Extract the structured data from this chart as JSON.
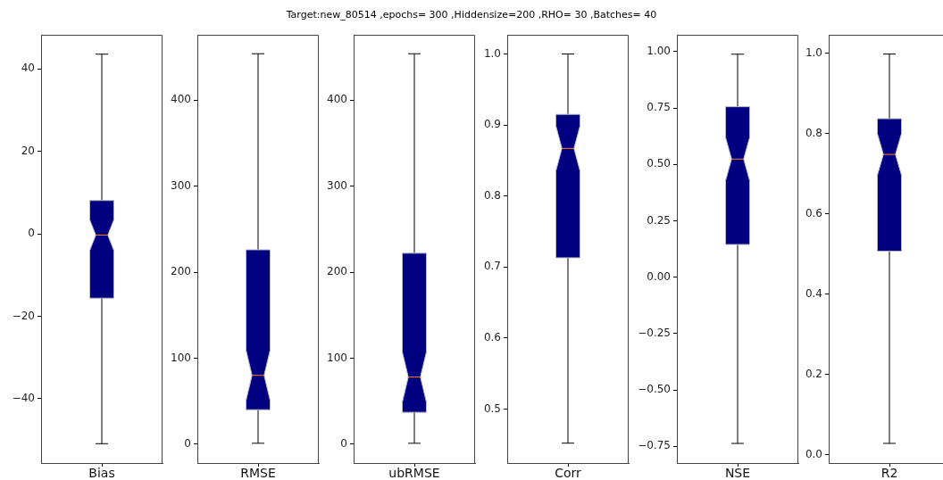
{
  "chart_data": [
    {
      "type": "box",
      "categories": [
        "Bias"
      ],
      "color": "#000080",
      "ylim": [
        -55.6,
        48.3
      ],
      "yticks": [
        {
          "value": -40,
          "label": "−40"
        },
        {
          "value": -20,
          "label": "−20"
        },
        0,
        20,
        40
      ],
      "boxes": [
        {
          "low": -50.9,
          "q1": -15.6,
          "median": -0.3,
          "q3": 8.1,
          "high": 43.6
        }
      ]
    },
    {
      "type": "box",
      "categories": [
        "RMSE"
      ],
      "color": "#000080",
      "ylim": [
        -22,
        476
      ],
      "yticks": [
        0,
        100,
        200,
        300,
        400
      ],
      "boxes": [
        {
          "low": 1,
          "q1": 40,
          "median": 80,
          "q3": 226,
          "high": 454
        }
      ]
    },
    {
      "type": "box",
      "title": "Target:new_80514 ,epochs= 300 ,Hiddensize=200 ,RHO= 30 ,Batches= 40",
      "categories": [
        "ubRMSE"
      ],
      "color": "#000080",
      "ylim": [
        -22,
        476
      ],
      "yticks": [
        0,
        100,
        200,
        300,
        400
      ],
      "boxes": [
        {
          "low": 1,
          "q1": 37,
          "median": 78,
          "q3": 222,
          "high": 454
        }
      ]
    },
    {
      "type": "box",
      "categories": [
        "Corr"
      ],
      "color": "#000080",
      "ylim": [
        0.424,
        1.027
      ],
      "yticks": [
        0.5,
        0.6,
        0.7,
        0.8,
        0.9,
        {
          "value": 1,
          "label": "1.0"
        }
      ],
      "boxes": [
        {
          "low": 0.452,
          "q1": 0.713,
          "median": 0.867,
          "q3": 0.915,
          "high": 1.0
        }
      ]
    },
    {
      "type": "box",
      "categories": [
        "NSE"
      ],
      "color": "#000080",
      "ylim": [
        -0.824,
        1.075
      ],
      "yticks": [
        {
          "value": -0.75,
          "label": "−0.75"
        },
        {
          "value": -0.5,
          "label": "−0.50"
        },
        {
          "value": -0.25,
          "label": "−0.25"
        },
        {
          "value": 0,
          "label": "0.00"
        },
        0.25,
        {
          "value": 0.5,
          "label": "0.50"
        },
        0.75,
        {
          "value": 1,
          "label": "1.00"
        }
      ],
      "boxes": [
        {
          "low": -0.737,
          "q1": 0.145,
          "median": 0.524,
          "q3": 0.756,
          "high": 0.989
        }
      ]
    },
    {
      "type": "box",
      "categories": [
        "R2"
      ],
      "color": "#000080",
      "ylim": [
        -0.021,
        1.046
      ],
      "yticks": [
        {
          "value": 0,
          "label": "0.0"
        },
        0.2,
        0.4,
        0.6,
        0.8,
        {
          "value": 1,
          "label": "1.0"
        }
      ],
      "boxes": [
        {
          "low": 0.028,
          "q1": 0.507,
          "median": 0.748,
          "q3": 0.837,
          "high": 0.998
        }
      ]
    }
  ]
}
